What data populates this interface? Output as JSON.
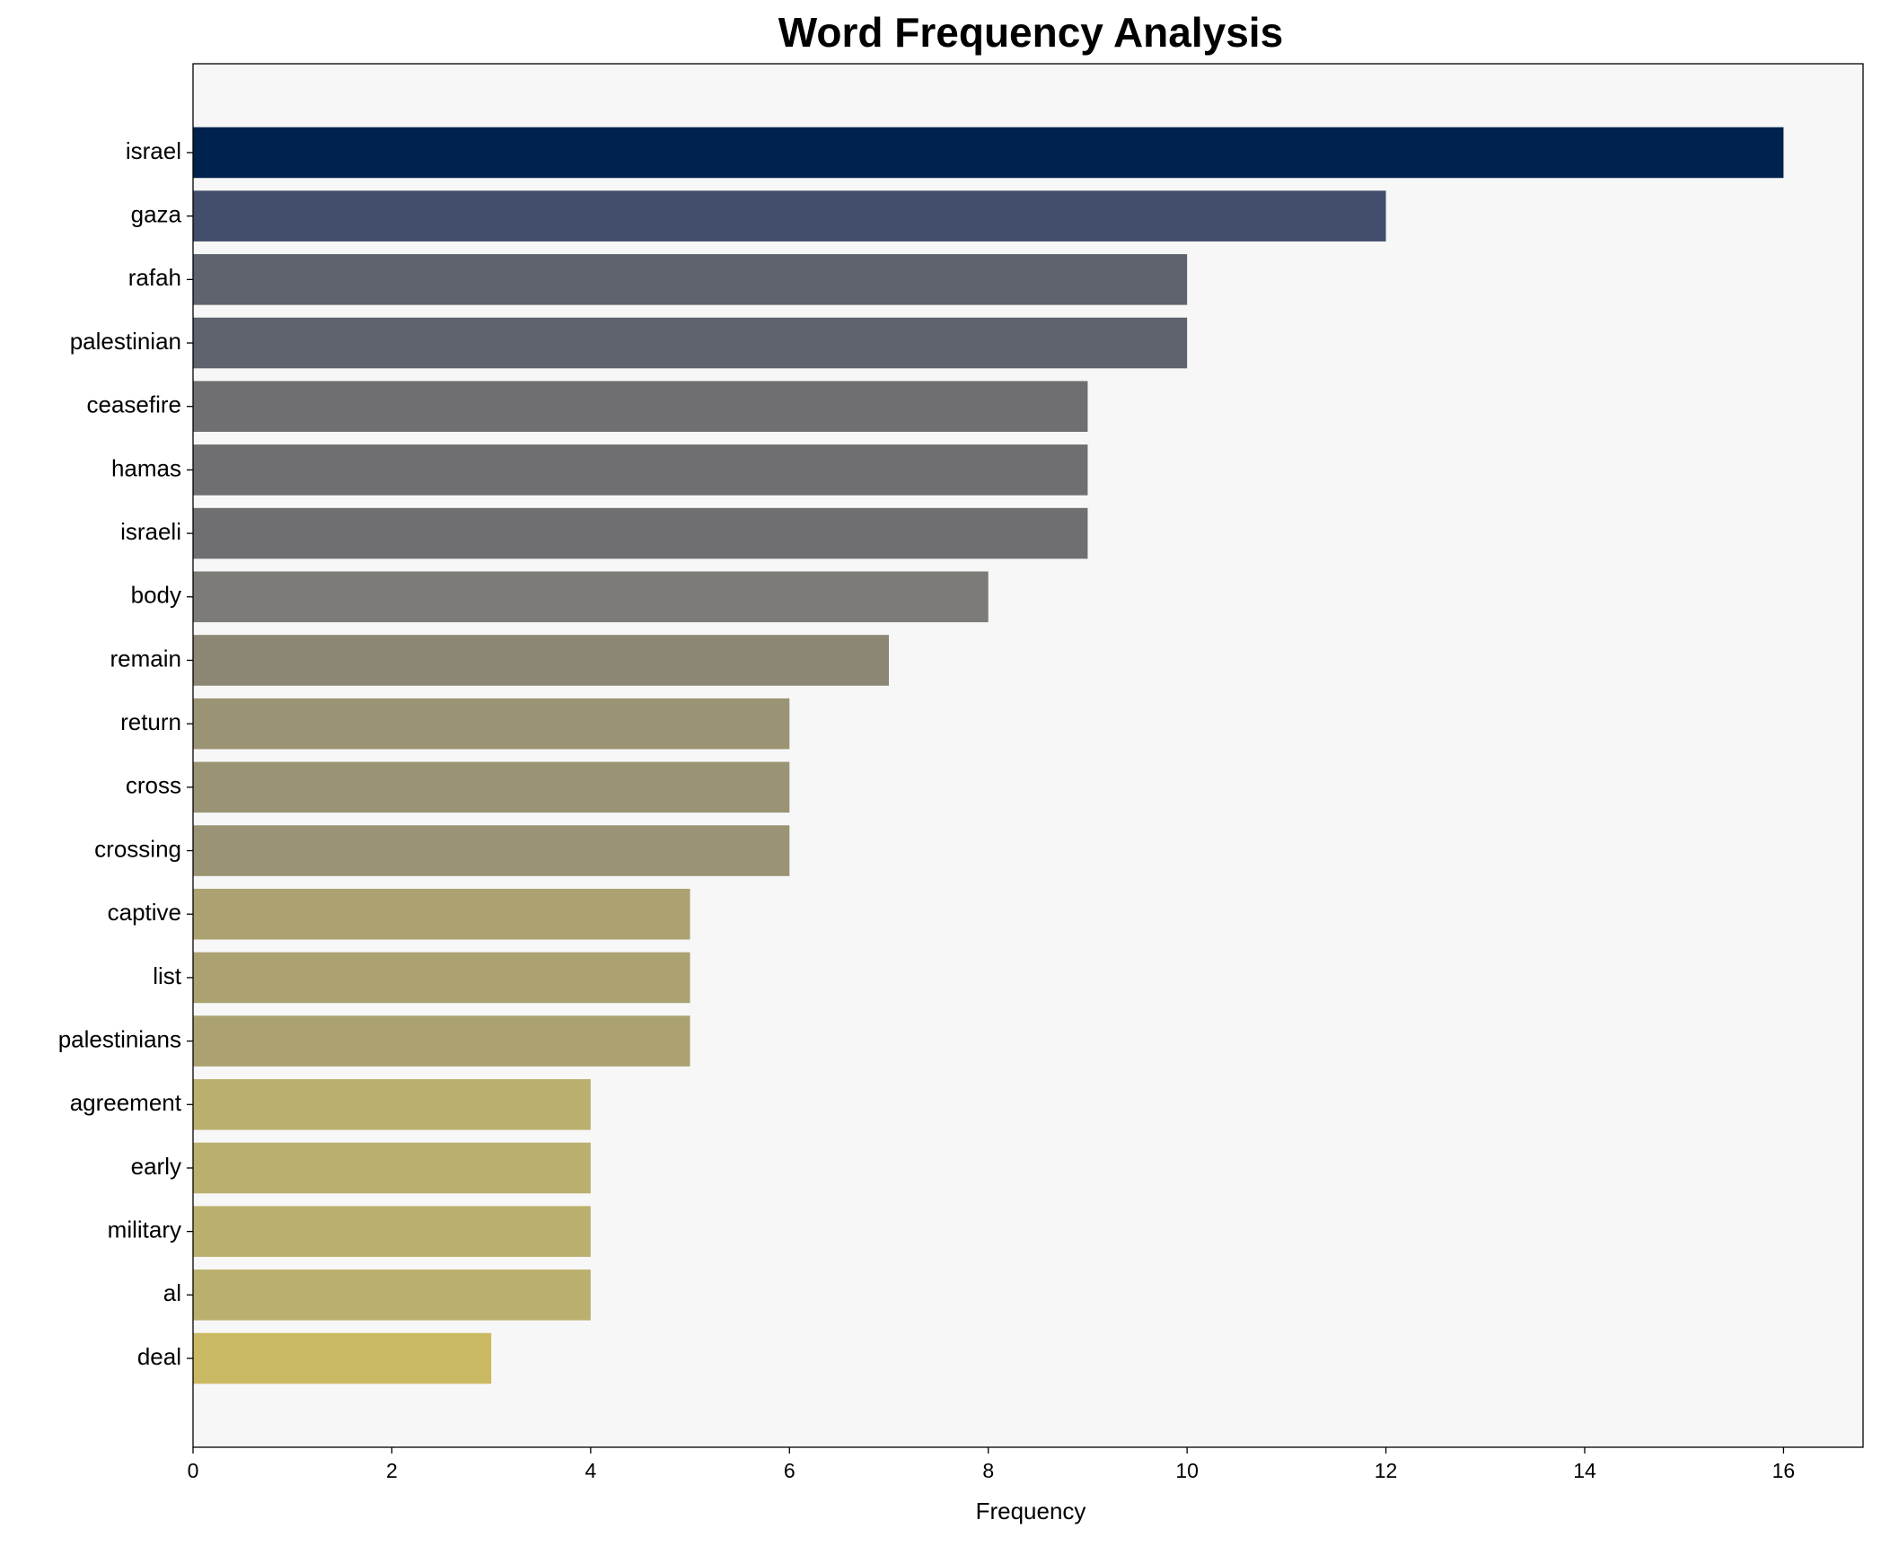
{
  "chart_data": {
    "type": "barh",
    "title": "Word Frequency Analysis",
    "xlabel": "Frequency",
    "categories": [
      "israel",
      "gaza",
      "rafah",
      "palestinian",
      "ceasefire",
      "hamas",
      "israeli",
      "body",
      "remain",
      "return",
      "cross",
      "crossing",
      "captive",
      "list",
      "palestinians",
      "agreement",
      "early",
      "military",
      "al",
      "deal"
    ],
    "values": [
      16,
      12,
      10,
      10,
      9,
      9,
      9,
      8,
      7,
      6,
      6,
      6,
      5,
      5,
      5,
      4,
      4,
      4,
      4,
      3
    ],
    "colors": [
      "#00224e",
      "#434e6c",
      "#5f636e",
      "#5f636e",
      "#6f6f71",
      "#6f6f71",
      "#6f6f71",
      "#7c7b78",
      "#8c8775",
      "#9b9474",
      "#9b9474",
      "#9b9474",
      "#aca271",
      "#aca271",
      "#aca271",
      "#bbaf6d",
      "#bbaf6d",
      "#bbaf6d",
      "#bbaf6d",
      "#cab963"
    ],
    "xlim": [
      0,
      16.8
    ],
    "xticks": [
      0,
      2,
      4,
      6,
      8,
      10,
      12,
      14,
      16
    ]
  }
}
